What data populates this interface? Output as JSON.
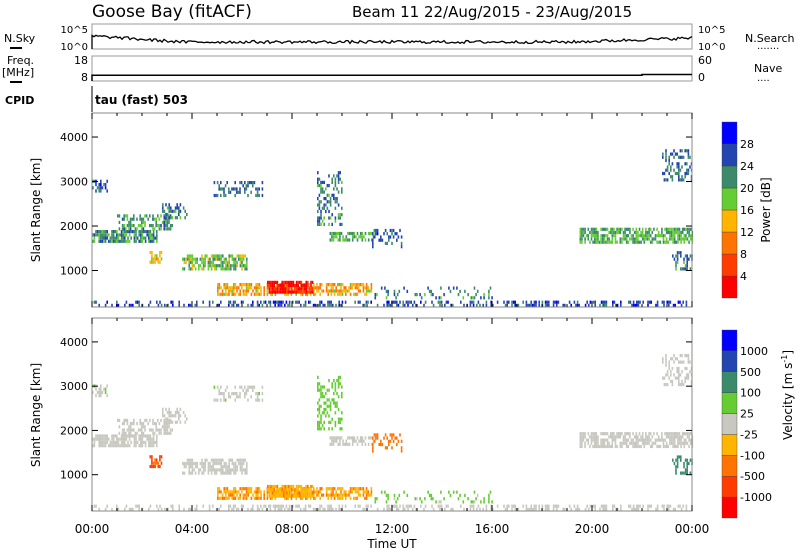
{
  "header": {
    "title": "Goose Bay (fitACF)",
    "subtitle": "Beam 11 22/Aug/2015 - 23/Aug/2015"
  },
  "noise_panel": {
    "left_label": "N.Sky",
    "right_label": "N.Search",
    "right_legend": "·······",
    "left_ticks": [
      "10^5",
      "10^0"
    ],
    "right_ticks": [
      "10^5",
      "10^0"
    ],
    "log_range": [
      0,
      5
    ],
    "nsky_level_start": 2.6,
    "nsky_level_mid": 1.4,
    "nsky_level_end": 2.2
  },
  "freq_panel": {
    "left_label_1": "Freq.",
    "left_label_2": "[MHz]",
    "right_label": "Nave",
    "right_legend": "····",
    "left_ticks": [
      "18",
      "8"
    ],
    "right_ticks": [
      "60",
      "0"
    ],
    "freq_mhz": 10.3,
    "freq_change_hour": 22,
    "freq_after_mhz": 10.6
  },
  "cpid": {
    "label": "CPID",
    "value": "tau (fast) 503"
  },
  "chart_data": [
    {
      "type": "heatmap",
      "title": "Power",
      "ylabel": "Slant Range [km]",
      "xlabel": "Time UT",
      "ylim": [
        180,
        4540
      ],
      "xlim": [
        0,
        24
      ],
      "yticks": [
        "1000",
        "2000",
        "3000",
        "4000"
      ],
      "colorbar": {
        "label": "Power [dB]",
        "ticks": [
          "4",
          "8",
          "12",
          "16",
          "20",
          "24",
          "28"
        ],
        "colors": [
          "#0000ff",
          "#2245b0",
          "#3b8a6b",
          "#66cc33",
          "#ffb400",
          "#ff7300",
          "#ff3c00",
          "#ff0000"
        ]
      }
    },
    {
      "type": "heatmap",
      "title": "Velocity",
      "ylabel": "Slant Range [km]",
      "xlabel": "Time UT",
      "ylim": [
        180,
        4540
      ],
      "xlim": [
        0,
        24
      ],
      "yticks": [
        "1000",
        "2000",
        "3000",
        "4000"
      ],
      "xticks": [
        "00:00",
        "04:00",
        "08:00",
        "12:00",
        "16:00",
        "20:00",
        "00:00"
      ],
      "colorbar": {
        "label_main": "Velocity",
        "label_units": "[m s",
        "label_exp": "-1",
        "label_close": "]",
        "ticks": [
          "1000",
          "500",
          "100",
          "25",
          "-25",
          "-100",
          "-500",
          "-1000"
        ],
        "colors": [
          "#0000ff",
          "#2245b0",
          "#3b8a6b",
          "#66cc33",
          "#c8c8c0",
          "#ffb400",
          "#ff7300",
          "#ff3c00",
          "#ff0000"
        ]
      },
      "echo_regions": [
        {
          "t0": 0.0,
          "t1": 2.6,
          "r0": 1620,
          "r1": 1900,
          "power": 10,
          "vel": 0,
          "density": 0.75
        },
        {
          "t0": 1.0,
          "t1": 3.2,
          "r0": 1900,
          "r1": 2200,
          "power": 11,
          "vel": 0,
          "density": 0.55
        },
        {
          "t0": 2.8,
          "t1": 3.8,
          "r0": 2150,
          "r1": 2500,
          "power": 9,
          "vel": 0,
          "density": 0.45
        },
        {
          "t0": 0.0,
          "t1": 0.6,
          "r0": 2750,
          "r1": 3000,
          "power": 7,
          "vel": 10,
          "density": 0.5
        },
        {
          "t0": 4.8,
          "t1": 6.8,
          "r0": 2650,
          "r1": 2950,
          "power": 8,
          "vel": 10,
          "density": 0.35
        },
        {
          "t0": 3.6,
          "t1": 6.2,
          "r0": 1000,
          "r1": 1350,
          "power": 13,
          "vel": 0,
          "density": 0.7
        },
        {
          "t0": 2.3,
          "t1": 2.8,
          "r0": 1150,
          "r1": 1400,
          "power": 18,
          "vel": -600,
          "density": 0.6
        },
        {
          "t0": 5.0,
          "t1": 11.2,
          "r0": 430,
          "r1": 720,
          "power": 19,
          "vel": -90,
          "density": 0.65
        },
        {
          "t0": 7.0,
          "t1": 8.8,
          "r0": 480,
          "r1": 700,
          "power": 29,
          "vel": -80,
          "density": 0.85
        },
        {
          "t0": 9.0,
          "t1": 10.0,
          "r0": 2000,
          "r1": 3200,
          "power": 9,
          "vel": 60,
          "density": 0.3
        },
        {
          "t0": 9.5,
          "t1": 11.3,
          "r0": 1650,
          "r1": 1850,
          "power": 12,
          "vel": 0,
          "density": 0.6
        },
        {
          "t0": 11.2,
          "t1": 12.4,
          "r0": 1500,
          "r1": 1900,
          "power": 7,
          "vel": -200,
          "density": 0.25
        },
        {
          "t0": 11.3,
          "t1": 16.0,
          "r0": 350,
          "r1": 600,
          "power": 9,
          "vel": 50,
          "density": 0.15
        },
        {
          "t0": 19.5,
          "t1": 24.0,
          "r0": 1600,
          "r1": 1950,
          "power": 12,
          "vel": 0,
          "density": 0.7
        },
        {
          "t0": 22.8,
          "t1": 24.0,
          "r0": 3000,
          "r1": 3700,
          "power": 8,
          "vel": 0,
          "density": 0.35
        },
        {
          "t0": 23.2,
          "t1": 24.0,
          "r0": 1000,
          "r1": 1400,
          "power": 9,
          "vel": 200,
          "density": 0.3
        },
        {
          "t0": 0.0,
          "t1": 24.0,
          "r0": 180,
          "r1": 300,
          "power": 6,
          "vel": 0,
          "density": 0.35
        }
      ]
    }
  ]
}
